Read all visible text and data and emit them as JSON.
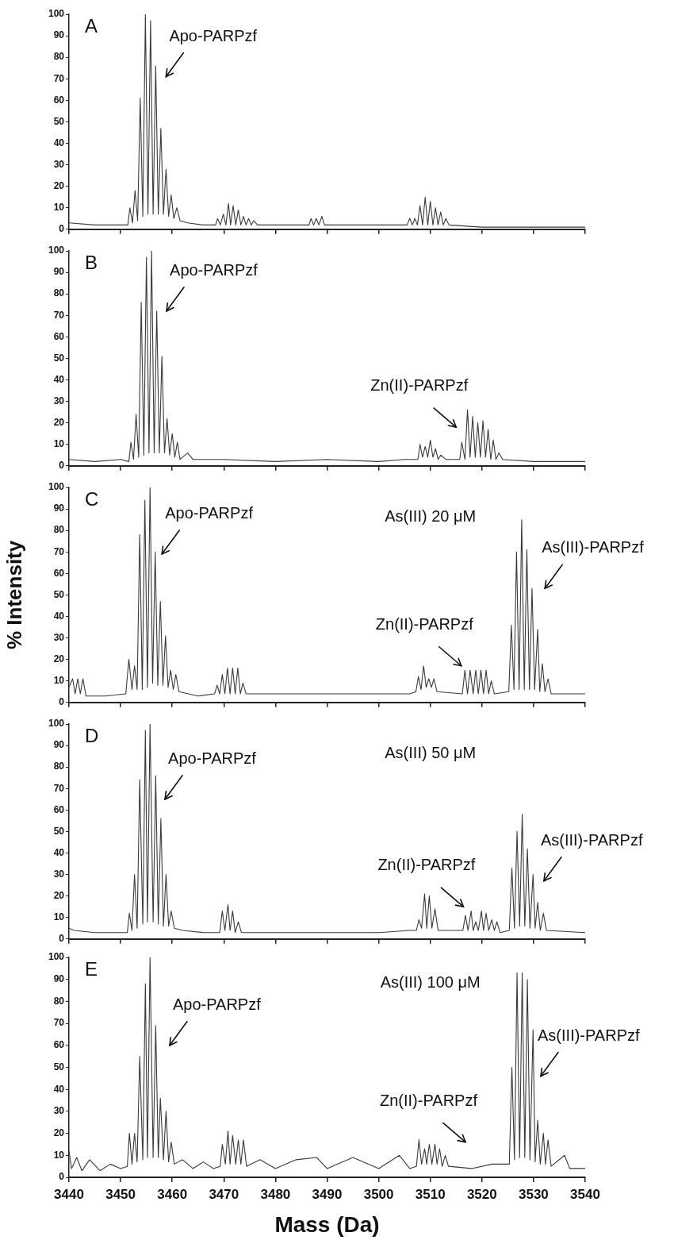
{
  "chart_data": [
    {
      "type": "line",
      "title": "A",
      "color": "#3a3a3a",
      "tick_labels": "y",
      "xlim": [
        3440,
        3540
      ],
      "xticks": [
        3440,
        3450,
        3460,
        3470,
        3480,
        3490,
        3500,
        3510,
        3520,
        3530,
        3540
      ],
      "ylim": [
        0,
        100
      ],
      "yticks": [
        0,
        10,
        20,
        30,
        40,
        50,
        60,
        70,
        80,
        90,
        100
      ],
      "annotations": [
        "Apo-PARPzf"
      ],
      "x": [
        3440,
        3445,
        3450,
        3451.4,
        3451.8,
        3452.3,
        3452.8,
        3453.3,
        3453.8,
        3454.3,
        3454.8,
        3455.3,
        3455.8,
        3456.3,
        3456.8,
        3457.3,
        3457.8,
        3458.3,
        3458.8,
        3459.3,
        3459.8,
        3460.3,
        3460.9,
        3461.5,
        3463,
        3466,
        3468.4,
        3468.8,
        3469.3,
        3469.9,
        3470.4,
        3470.9,
        3471.3,
        3471.8,
        3472.3,
        3472.8,
        3473.3,
        3473.8,
        3474.3,
        3474.8,
        3475.3,
        3475.8,
        3476.5,
        3480,
        3486.5,
        3486.9,
        3487.4,
        3487.9,
        3488.4,
        3489,
        3489.5,
        3495,
        3505.5,
        3506,
        3506.5,
        3507,
        3507.5,
        3508,
        3508.5,
        3509,
        3509.5,
        3510,
        3510.5,
        3511,
        3511.5,
        3512,
        3512.5,
        3513,
        3513.6,
        3520,
        3530,
        3540
      ],
      "values": [
        3,
        2,
        2,
        2,
        10,
        3,
        18,
        4,
        61,
        6,
        100,
        7,
        97,
        7,
        76,
        7,
        47,
        7,
        28,
        6,
        16,
        5,
        10,
        4,
        3,
        2,
        2,
        5,
        2,
        7,
        2,
        12,
        2,
        11,
        2,
        9,
        2,
        6,
        2,
        5,
        2,
        4,
        2,
        2,
        2,
        5,
        2,
        5,
        2,
        6,
        2,
        2,
        2,
        5,
        2,
        5,
        2,
        11,
        2,
        15,
        2,
        13,
        2,
        10,
        2,
        8,
        2,
        5,
        2,
        1,
        1,
        1
      ]
    },
    {
      "type": "line",
      "title": "B",
      "color": "#3a3a3a",
      "tick_labels": "y",
      "xlim": [
        3440,
        3540
      ],
      "xticks": [
        3440,
        3450,
        3460,
        3470,
        3480,
        3490,
        3500,
        3510,
        3520,
        3530,
        3540
      ],
      "ylim": [
        0,
        100
      ],
      "yticks": [
        0,
        10,
        20,
        30,
        40,
        50,
        60,
        70,
        80,
        90,
        100
      ],
      "annotations": [
        "Apo-PARPzf",
        "Zn(II)-PARPzf"
      ],
      "x": [
        3440,
        3445,
        3450,
        3451.6,
        3452,
        3452.5,
        3453,
        3453.5,
        3454,
        3454.5,
        3455,
        3455.5,
        3456,
        3456.5,
        3457,
        3457.5,
        3458,
        3458.5,
        3459,
        3459.5,
        3460,
        3460.5,
        3461,
        3461.5,
        3463,
        3464,
        3470,
        3480,
        3490,
        3500,
        3505,
        3507.6,
        3508,
        3508.5,
        3509,
        3509.5,
        3510,
        3510.5,
        3511,
        3511.5,
        3512,
        3513,
        3515.7,
        3516.1,
        3516.7,
        3517.2,
        3517.7,
        3518.2,
        3518.7,
        3519.2,
        3519.7,
        3520.2,
        3520.7,
        3521.2,
        3521.7,
        3522.2,
        3522.7,
        3523.3,
        3524,
        3530,
        3540
      ],
      "values": [
        3,
        2,
        3,
        2,
        11,
        3,
        24,
        4,
        76,
        5,
        97,
        6,
        100,
        6,
        72,
        6,
        51,
        6,
        22,
        5,
        15,
        4,
        11,
        3,
        6,
        3,
        3,
        2,
        3,
        2,
        3,
        3,
        10,
        4,
        9,
        4,
        12,
        4,
        8,
        3,
        5,
        3,
        3,
        11,
        3,
        26,
        4,
        23,
        4,
        20,
        4,
        21,
        4,
        17,
        3,
        12,
        3,
        6,
        3,
        2,
        2
      ]
    },
    {
      "type": "line",
      "title": "C",
      "ylabel": "% Intensity",
      "color": "#3a3a3a",
      "tick_labels": "y",
      "xlim": [
        3440,
        3540
      ],
      "xticks": [
        3440,
        3450,
        3460,
        3470,
        3480,
        3490,
        3500,
        3510,
        3520,
        3530,
        3540
      ],
      "ylim": [
        0,
        100
      ],
      "yticks": [
        0,
        10,
        20,
        30,
        40,
        50,
        60,
        70,
        80,
        90,
        100
      ],
      "annotations": [
        "Apo-PARPzf",
        "As(III) 20 μM",
        "Zn(II)-PARPzf",
        "As(III)-PARPzf"
      ],
      "x": [
        3440,
        3440.7,
        3441.2,
        3441.7,
        3442.2,
        3442.7,
        3443.3,
        3447,
        3451,
        3451.6,
        3452.2,
        3452.7,
        3453.2,
        3453.7,
        3454.2,
        3454.7,
        3455.2,
        3455.7,
        3456.2,
        3456.7,
        3457.2,
        3457.7,
        3458.2,
        3458.7,
        3459.2,
        3459.7,
        3460.2,
        3460.7,
        3461.3,
        3465,
        3468.2,
        3468.7,
        3469.2,
        3469.7,
        3470.2,
        3470.7,
        3471.2,
        3471.7,
        3472.2,
        3472.7,
        3473.2,
        3473.7,
        3474.3,
        3480,
        3490,
        3500,
        3506,
        3507.2,
        3507.7,
        3508.2,
        3508.7,
        3509.2,
        3509.7,
        3510.2,
        3510.7,
        3511.3,
        3516.2,
        3516.7,
        3517.2,
        3517.7,
        3518.3,
        3518.8,
        3519.3,
        3519.8,
        3520.3,
        3520.8,
        3521.3,
        3521.8,
        3522.4,
        3525.2,
        3525.7,
        3526.2,
        3526.7,
        3527.2,
        3527.7,
        3528.2,
        3528.7,
        3529.2,
        3529.7,
        3530.2,
        3530.8,
        3531.2,
        3531.7,
        3532.2,
        3532.8,
        3533.4,
        3540
      ],
      "values": [
        7,
        11,
        4,
        11,
        4,
        11,
        3,
        3,
        4,
        20,
        6,
        17,
        6,
        78,
        6,
        94,
        7,
        100,
        9,
        70,
        8,
        47,
        8,
        31,
        7,
        15,
        6,
        13,
        5,
        3,
        4,
        8,
        4,
        13,
        4,
        16,
        4,
        16,
        4,
        16,
        4,
        9,
        4,
        4,
        4,
        4,
        4,
        5,
        12,
        6,
        17,
        7,
        11,
        7,
        11,
        5,
        4,
        15,
        4,
        15,
        4,
        15,
        4,
        15,
        4,
        15,
        4,
        10,
        4,
        5,
        36,
        6,
        70,
        6,
        85,
        6,
        71,
        6,
        53,
        6,
        34,
        5,
        18,
        5,
        11,
        4,
        4
      ]
    },
    {
      "type": "line",
      "title": "D",
      "color": "#3a3a3a",
      "tick_labels": "y",
      "xlim": [
        3440,
        3540
      ],
      "xticks": [
        3440,
        3450,
        3460,
        3470,
        3480,
        3490,
        3500,
        3510,
        3520,
        3530,
        3540
      ],
      "ylim": [
        0,
        100
      ],
      "yticks": [
        0,
        10,
        20,
        30,
        40,
        50,
        60,
        70,
        80,
        90,
        100
      ],
      "annotations": [
        "Apo-PARPzf",
        "As(III) 50 μM",
        "Zn(II)-PARPzf",
        "As(III)-PARPzf"
      ],
      "x": [
        3440,
        3441,
        3445,
        3450,
        3451.3,
        3451.7,
        3452.2,
        3452.7,
        3453.2,
        3453.7,
        3454.3,
        3454.8,
        3455.2,
        3455.7,
        3456.3,
        3456.8,
        3457.3,
        3457.8,
        3458.3,
        3458.8,
        3459.3,
        3459.8,
        3460.4,
        3462,
        3466,
        3469.2,
        3469.7,
        3470.2,
        3470.8,
        3471.2,
        3471.7,
        3472.2,
        3472.8,
        3473.4,
        3480,
        3490,
        3500,
        3506,
        3507.3,
        3507.8,
        3508.3,
        3508.9,
        3509.3,
        3509.8,
        3510.3,
        3510.9,
        3511.5,
        3516.3,
        3516.8,
        3517.3,
        3517.9,
        3518.3,
        3518.8,
        3519.3,
        3519.9,
        3520.3,
        3520.8,
        3521.3,
        3521.9,
        3522.4,
        3522.9,
        3523.5,
        3525.3,
        3525.8,
        3526.3,
        3526.8,
        3527.3,
        3527.8,
        3528.3,
        3528.8,
        3529.3,
        3529.9,
        3530.3,
        3530.8,
        3531.3,
        3531.9,
        3532.5,
        3540
      ],
      "values": [
        5,
        4,
        3,
        3,
        3,
        12,
        4,
        30,
        5,
        74,
        7,
        97,
        8,
        100,
        8,
        76,
        7,
        56,
        6,
        30,
        6,
        13,
        5,
        4,
        3,
        3,
        13,
        4,
        16,
        4,
        13,
        3,
        8,
        3,
        3,
        3,
        3,
        4,
        4,
        9,
        5,
        21,
        5,
        20,
        5,
        14,
        4,
        4,
        11,
        4,
        13,
        4,
        8,
        4,
        13,
        4,
        12,
        4,
        9,
        4,
        8,
        3,
        4,
        33,
        5,
        50,
        6,
        58,
        6,
        42,
        5,
        30,
        5,
        17,
        4,
        12,
        4,
        3
      ]
    },
    {
      "type": "line",
      "title": "E",
      "xlabel": "Mass (Da)",
      "color": "#3a3a3a",
      "xlim": [
        3440,
        3540
      ],
      "xticks": [
        3440,
        3450,
        3460,
        3470,
        3480,
        3490,
        3500,
        3510,
        3520,
        3530,
        3540
      ],
      "ylim": [
        0,
        100
      ],
      "yticks": [
        0,
        10,
        20,
        30,
        40,
        50,
        60,
        70,
        80,
        90,
        100
      ],
      "annotations": [
        "Apo-PARPzf",
        "As(III) 100 μM",
        "Zn(II)-PARPzf",
        "As(III)-PARPzf"
      ],
      "x": [
        3440,
        3440.5,
        3441.5,
        3442.5,
        3444,
        3446,
        3448,
        3450,
        3451.3,
        3451.7,
        3452.2,
        3452.7,
        3453.2,
        3453.7,
        3454.3,
        3454.8,
        3455.2,
        3455.7,
        3456.3,
        3456.8,
        3457.3,
        3457.7,
        3458.3,
        3458.8,
        3459.3,
        3459.8,
        3460.4,
        3462,
        3464,
        3466,
        3468,
        3469.3,
        3469.7,
        3470.3,
        3470.8,
        3471.2,
        3471.7,
        3472.3,
        3472.8,
        3473.3,
        3473.8,
        3474.4,
        3477,
        3480,
        3484,
        3488,
        3490,
        3495,
        3500,
        3504,
        3506,
        3507.3,
        3507.8,
        3508.3,
        3508.9,
        3509.3,
        3509.8,
        3510.3,
        3510.9,
        3511.3,
        3511.8,
        3512.3,
        3512.9,
        3513.5,
        3518,
        3522,
        3525.3,
        3525.8,
        3526.3,
        3526.8,
        3527.3,
        3527.8,
        3528.3,
        3528.8,
        3529.3,
        3529.9,
        3530.3,
        3530.8,
        3531.3,
        3531.9,
        3532.3,
        3532.8,
        3533.4,
        3536,
        3537,
        3540
      ],
      "values": [
        12,
        4,
        9,
        3,
        8,
        3,
        6,
        4,
        5,
        20,
        6,
        20,
        7,
        55,
        8,
        88,
        9,
        100,
        9,
        69,
        9,
        36,
        8,
        30,
        7,
        16,
        6,
        8,
        4,
        7,
        4,
        5,
        15,
        6,
        21,
        6,
        19,
        6,
        17,
        6,
        17,
        5,
        8,
        4,
        8,
        9,
        4,
        9,
        4,
        10,
        4,
        5,
        17,
        6,
        13,
        6,
        15,
        6,
        15,
        6,
        13,
        5,
        10,
        5,
        4,
        6,
        6,
        50,
        8,
        93,
        9,
        93,
        9,
        90,
        8,
        67,
        7,
        26,
        6,
        20,
        6,
        17,
        5,
        10,
        4,
        4
      ]
    }
  ]
}
